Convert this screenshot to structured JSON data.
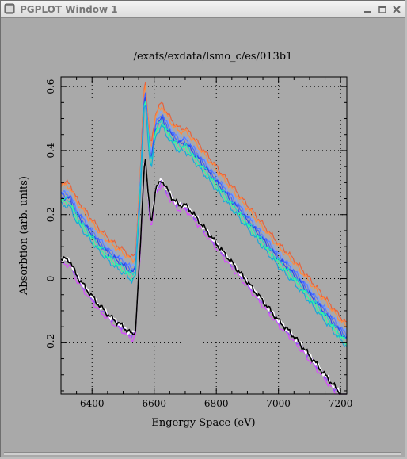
{
  "window": {
    "title": "PGPLOT Window 1",
    "buttons": [
      "minimize-icon",
      "maximize-icon",
      "close-icon"
    ]
  },
  "chart_data": {
    "type": "line",
    "title": "/exafs/exdata/lsmo_c/es/013b1",
    "xlabel": "Engergy Space (eV)",
    "ylabel": "Absorbtion (arb. units)",
    "xlim": [
      6300,
      7220
    ],
    "ylim": [
      -0.36,
      0.63
    ],
    "x_ticks": [
      6400,
      6600,
      6800,
      7000,
      7200
    ],
    "x_tick_labels": [
      "6400",
      "6600",
      "6800",
      "7000",
      "7200"
    ],
    "y_ticks": [
      -0.2,
      0,
      0.2,
      0.4,
      0.6
    ],
    "y_tick_labels": [
      "-0.2",
      "0",
      "0.2",
      "0.4",
      "0.6"
    ],
    "grid": true,
    "background": "#a9a9a9",
    "series": [
      {
        "color": "#e8623a",
        "offset": 0.03
      },
      {
        "color": "#ff8a40",
        "offset": 0.02
      },
      {
        "color": "#d94cff",
        "offset": -0.225
      },
      {
        "color": "#9a4dff",
        "offset": -0.215
      },
      {
        "color": "#7da2ff",
        "offset": 0.0
      },
      {
        "color": "#5a7dff",
        "offset": -0.005
      },
      {
        "color": "#3f64ff",
        "offset": -0.012
      },
      {
        "color": "#2b48e8",
        "offset": -0.018
      },
      {
        "color": "#1fd6c8",
        "offset": -0.024
      },
      {
        "color": "#33ff9a",
        "offset": -0.034
      },
      {
        "color": "#1aa8d9",
        "offset": -0.042
      },
      {
        "color": "#ffffff",
        "offset": -0.21
      },
      {
        "color": "#000000",
        "offset": -0.21
      }
    ],
    "reference_curve": {
      "x": [
        6300,
        6330,
        6350,
        6380,
        6420,
        6460,
        6500,
        6530,
        6540,
        6555,
        6570,
        6580,
        6590,
        6605,
        6625,
        6640,
        6660,
        6680,
        6700,
        6720,
        6760,
        6800,
        6850,
        6900,
        6950,
        7000,
        7050,
        7100,
        7150,
        7200,
        7220
      ],
      "y": [
        0.275,
        0.265,
        0.22,
        0.18,
        0.13,
        0.09,
        0.06,
        0.035,
        0.05,
        0.3,
        0.61,
        0.48,
        0.38,
        0.49,
        0.52,
        0.49,
        0.46,
        0.44,
        0.44,
        0.42,
        0.37,
        0.32,
        0.26,
        0.2,
        0.14,
        0.08,
        0.03,
        -0.03,
        -0.09,
        -0.15,
        -0.17
      ]
    }
  }
}
